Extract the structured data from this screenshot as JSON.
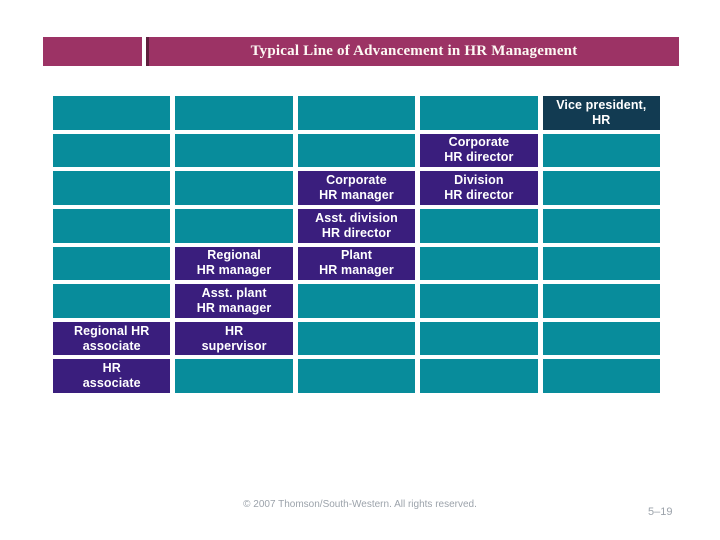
{
  "title_bar": {
    "title": "Typical Line of Advancement in HR Management",
    "banner_color": "#9C3365",
    "banner_edge_color": "#5F1F3D",
    "text_color": "#FDF9F4"
  },
  "diagram": {
    "type": "advancement-grid",
    "rows": 8,
    "columns": 5,
    "colors": {
      "empty_cell": "#088C9B",
      "role_cell": "#3A1E7D",
      "top_role_cell": "#123B52",
      "cell_text": "#FFFFFF"
    },
    "cells": [
      {
        "row": 1,
        "col": 5,
        "label": "Vice president,\nHR",
        "type": "top_role"
      },
      {
        "row": 2,
        "col": 4,
        "label": "Corporate\nHR director",
        "type": "role"
      },
      {
        "row": 3,
        "col": 3,
        "label": "Corporate\nHR manager",
        "type": "role"
      },
      {
        "row": 3,
        "col": 4,
        "label": "Division\nHR director",
        "type": "role"
      },
      {
        "row": 4,
        "col": 3,
        "label": "Asst. division\nHR director",
        "type": "role"
      },
      {
        "row": 5,
        "col": 2,
        "label": "Regional\nHR manager",
        "type": "role"
      },
      {
        "row": 5,
        "col": 3,
        "label": "Plant\nHR manager",
        "type": "role"
      },
      {
        "row": 6,
        "col": 2,
        "label": "Asst. plant\nHR manager",
        "type": "role"
      },
      {
        "row": 7,
        "col": 1,
        "label": "Regional HR\nassociate",
        "type": "role"
      },
      {
        "row": 7,
        "col": 2,
        "label": "HR\nsupervisor",
        "type": "role"
      },
      {
        "row": 8,
        "col": 1,
        "label": "HR\nassociate",
        "type": "role"
      }
    ]
  },
  "footer": {
    "copyright": "© 2007 Thomson/South-Western. All rights reserved.",
    "page_number": "5–19",
    "text_color": "#9CA3AB"
  }
}
